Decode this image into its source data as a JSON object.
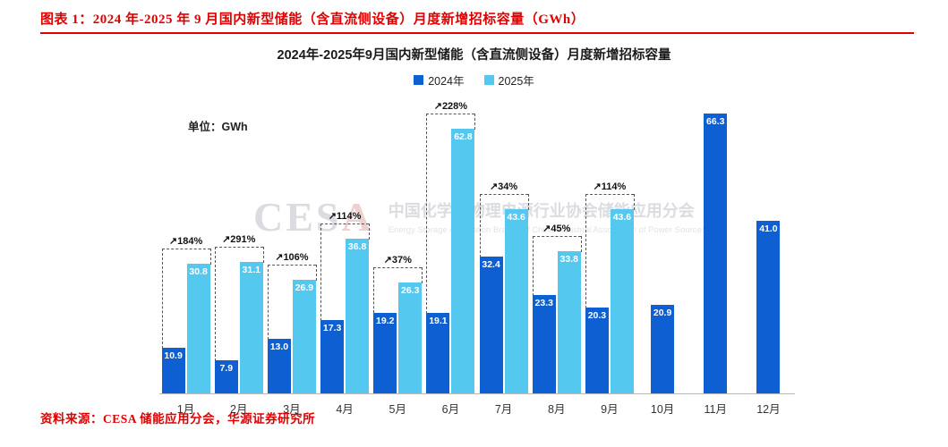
{
  "page": {
    "header_title": "图表 1：2024 年-2025 年 9 月国内新型储能（含直流侧设备）月度新增招标容量（GWh）",
    "source_note": "资料来源：CESA 储能应用分会，华源证券研究所",
    "accent_red": "#E10000"
  },
  "chart_data": {
    "type": "bar",
    "title": "2024年-2025年9月国内新型储能（含直流侧设备）月度新增招标容量",
    "unit_label": "单位：GWh",
    "categories": [
      "1月",
      "2月",
      "3月",
      "4月",
      "5月",
      "6月",
      "7月",
      "8月",
      "9月",
      "10月",
      "11月",
      "12月"
    ],
    "series": [
      {
        "name": "2024年",
        "color": "#0E5FD2",
        "values": [
          10.9,
          7.9,
          13.0,
          17.3,
          19.2,
          19.1,
          32.4,
          23.3,
          20.3,
          20.9,
          66.3,
          41.0
        ]
      },
      {
        "name": "2025年",
        "color": "#55C8F0",
        "values": [
          30.8,
          31.1,
          26.9,
          36.8,
          26.3,
          62.8,
          43.6,
          33.8,
          43.6,
          null,
          null,
          null
        ]
      }
    ],
    "growth_labels": [
      "↗184%",
      "↗291%",
      "↗106%",
      "↗114%",
      "↗37%",
      "↗228%",
      "↗34%",
      "↗45%",
      "↗114%",
      null,
      null,
      null
    ],
    "ylim": [
      0,
      70
    ],
    "grid": false,
    "legend_position": "top",
    "watermark": {
      "logo_c": "CES",
      "logo_a": "A",
      "line1": "中国化学与物理电源行业协会储能应用分会",
      "line2": "Energy Storage Application Branch of China Industrial Association of Power Sources"
    }
  }
}
